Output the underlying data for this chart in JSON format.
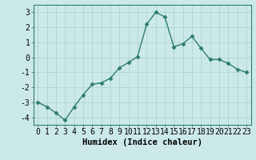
{
  "x": [
    0,
    1,
    2,
    3,
    4,
    5,
    6,
    7,
    8,
    9,
    10,
    11,
    12,
    13,
    14,
    15,
    16,
    17,
    18,
    19,
    20,
    21,
    22,
    23
  ],
  "y": [
    -3.0,
    -3.3,
    -3.7,
    -4.2,
    -3.3,
    -2.5,
    -1.8,
    -1.7,
    -1.4,
    -0.7,
    -0.35,
    0.05,
    2.2,
    3.0,
    2.7,
    0.7,
    0.9,
    1.4,
    0.6,
    -0.15,
    -0.15,
    -0.4,
    -0.8,
    -1.0
  ],
  "line_color": "#2e7d6e",
  "marker": "D",
  "marker_size": 2.5,
  "bg_color": "#cce9e9",
  "grid_color": "#aed4d4",
  "xlabel": "Humidex (Indice chaleur)",
  "ylim": [
    -4.5,
    3.5
  ],
  "xlim": [
    -0.5,
    23.5
  ],
  "yticks": [
    -4,
    -3,
    -2,
    -1,
    0,
    1,
    2,
    3
  ],
  "xticks": [
    0,
    1,
    2,
    3,
    4,
    5,
    6,
    7,
    8,
    9,
    10,
    11,
    12,
    13,
    14,
    15,
    16,
    17,
    18,
    19,
    20,
    21,
    22,
    23
  ],
  "xlabel_fontsize": 7.5,
  "tick_fontsize": 7,
  "line_width": 1.0
}
